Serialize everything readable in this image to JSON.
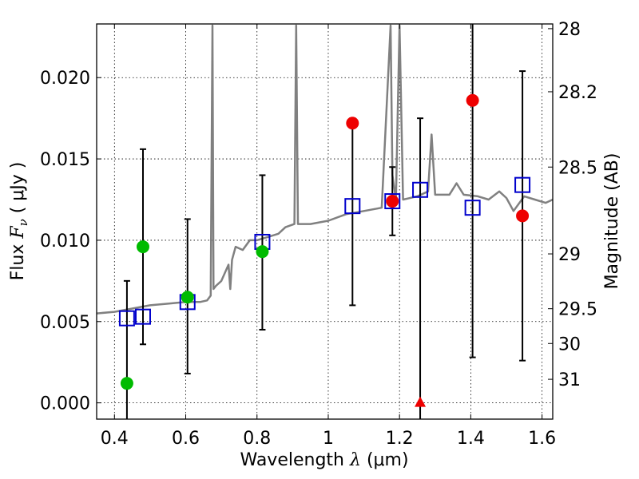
{
  "chart_data": {
    "type": "scatter",
    "xlabel": "Wavelength",
    "xlabel_symbol": "λ",
    "xlabel_unit": "(μm)",
    "ylabel": "Flux",
    "ylabel_symbol": "F",
    "ylabel_sub": "ν",
    "ylabel_unit": "( μJy )",
    "right_ylabel": "Magnitude (AB)",
    "xlim": [
      0.35,
      1.63
    ],
    "ylim": [
      -0.001,
      0.0233
    ],
    "grid": true,
    "x_ticks": [
      {
        "value": 0.4,
        "label": "0.4"
      },
      {
        "value": 0.6,
        "label": "0.6"
      },
      {
        "value": 0.8,
        "label": "0.8"
      },
      {
        "value": 1.0,
        "label": "1"
      },
      {
        "value": 1.2,
        "label": "1.2"
      },
      {
        "value": 1.4,
        "label": "1.4"
      },
      {
        "value": 1.6,
        "label": "1.6"
      }
    ],
    "y_ticks": [
      {
        "value": 0.0,
        "label": "0.000"
      },
      {
        "value": 0.005,
        "label": "0.005"
      },
      {
        "value": 0.01,
        "label": "0.010"
      },
      {
        "value": 0.015,
        "label": "0.015"
      },
      {
        "value": 0.02,
        "label": "0.020"
      }
    ],
    "right_ticks": [
      {
        "flux": 0.02301,
        "label": "28"
      },
      {
        "flux": 0.01913,
        "label": "28.2"
      },
      {
        "flux": 0.0145,
        "label": "28.5"
      },
      {
        "flux": 0.00916,
        "label": "29"
      },
      {
        "flux": 0.00579,
        "label": "29.5"
      },
      {
        "flux": 0.00365,
        "label": "30"
      },
      {
        "flux": 0.00145,
        "label": "31"
      }
    ],
    "series": [
      {
        "name": "model spectrum",
        "kind": "line",
        "color": "#808080",
        "points": [
          [
            0.35,
            0.0055
          ],
          [
            0.4,
            0.0056
          ],
          [
            0.45,
            0.0058
          ],
          [
            0.5,
            0.006
          ],
          [
            0.55,
            0.0061
          ],
          [
            0.6,
            0.0062
          ],
          [
            0.64,
            0.0062
          ],
          [
            0.66,
            0.0063
          ],
          [
            0.67,
            0.0066
          ],
          [
            0.675,
            0.0232
          ],
          [
            0.678,
            0.007
          ],
          [
            0.685,
            0.0072
          ],
          [
            0.7,
            0.0075
          ],
          [
            0.72,
            0.0085
          ],
          [
            0.725,
            0.007
          ],
          [
            0.73,
            0.0088
          ],
          [
            0.74,
            0.0096
          ],
          [
            0.76,
            0.0094
          ],
          [
            0.78,
            0.01
          ],
          [
            0.8,
            0.01
          ],
          [
            0.83,
            0.0102
          ],
          [
            0.86,
            0.0104
          ],
          [
            0.88,
            0.0108
          ],
          [
            0.905,
            0.011
          ],
          [
            0.91,
            0.0232
          ],
          [
            0.915,
            0.011
          ],
          [
            0.95,
            0.011
          ],
          [
            1.0,
            0.0112
          ],
          [
            1.05,
            0.0116
          ],
          [
            1.1,
            0.0118
          ],
          [
            1.15,
            0.012
          ],
          [
            1.175,
            0.0232
          ],
          [
            1.18,
            0.014
          ],
          [
            1.19,
            0.0125
          ],
          [
            1.2,
            0.0232
          ],
          [
            1.21,
            0.0125
          ],
          [
            1.25,
            0.0127
          ],
          [
            1.28,
            0.013
          ],
          [
            1.29,
            0.0165
          ],
          [
            1.3,
            0.0128
          ],
          [
            1.34,
            0.0128
          ],
          [
            1.36,
            0.0135
          ],
          [
            1.38,
            0.0128
          ],
          [
            1.42,
            0.0127
          ],
          [
            1.45,
            0.0125
          ],
          [
            1.48,
            0.013
          ],
          [
            1.5,
            0.0126
          ],
          [
            1.52,
            0.0118
          ],
          [
            1.55,
            0.0127
          ],
          [
            1.58,
            0.0125
          ],
          [
            1.61,
            0.0123
          ],
          [
            1.63,
            0.0125
          ]
        ]
      },
      {
        "name": "model photometry",
        "kind": "square-marker",
        "color": "#0000cc",
        "points": [
          [
            0.435,
            0.0052
          ],
          [
            0.48,
            0.0053
          ],
          [
            0.605,
            0.0062
          ],
          [
            0.815,
            0.0099
          ],
          [
            1.068,
            0.0121
          ],
          [
            1.18,
            0.0124
          ],
          [
            1.258,
            0.0131
          ],
          [
            1.405,
            0.012
          ],
          [
            1.545,
            0.0134
          ]
        ]
      },
      {
        "name": "observed optical",
        "kind": "circle-marker",
        "color": "#00bb00",
        "points": [
          [
            0.435,
            0.0012
          ],
          [
            0.48,
            0.0096
          ],
          [
            0.605,
            0.0065
          ],
          [
            0.815,
            0.0093
          ]
        ]
      },
      {
        "name": "observed near-IR",
        "kind": "circle-marker",
        "color": "#ee0000",
        "points": [
          [
            1.068,
            0.0172
          ],
          [
            1.18,
            0.0124
          ],
          [
            1.405,
            0.0186
          ],
          [
            1.545,
            0.0115
          ]
        ]
      },
      {
        "name": "upper limit",
        "kind": "triangle-marker",
        "color": "#ee0000",
        "points": [
          [
            1.258,
            0.0
          ]
        ]
      },
      {
        "name": "error bars",
        "kind": "errorbar",
        "color": "#000000",
        "items": [
          {
            "x": 0.435,
            "low": -0.0012,
            "high": 0.0075
          },
          {
            "x": 0.48,
            "low": 0.0036,
            "high": 0.0156
          },
          {
            "x": 0.605,
            "low": 0.0018,
            "high": 0.0113
          },
          {
            "x": 0.815,
            "low": 0.0045,
            "high": 0.014
          },
          {
            "x": 1.068,
            "low": 0.006,
            "high": 0.0175
          },
          {
            "x": 1.18,
            "low": 0.0103,
            "high": 0.0145
          },
          {
            "x": 1.258,
            "low": -0.0012,
            "high": 0.0175
          },
          {
            "x": 1.405,
            "low": 0.0028,
            "high": 0.0235
          },
          {
            "x": 1.545,
            "low": 0.0026,
            "high": 0.0204
          }
        ]
      }
    ]
  }
}
